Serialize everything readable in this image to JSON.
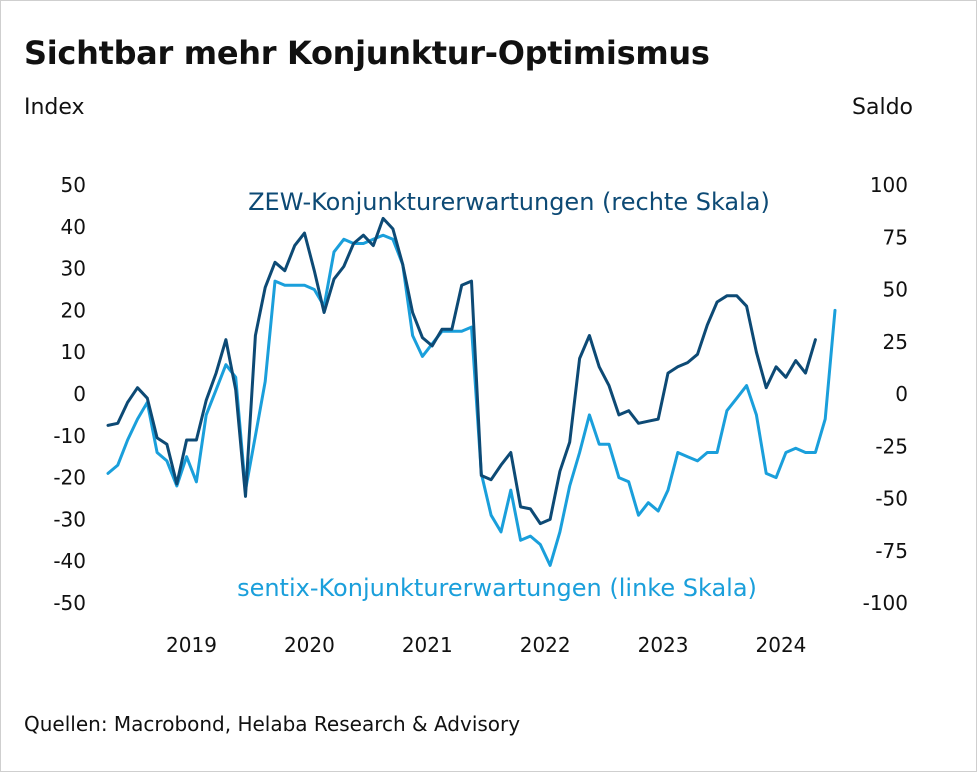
{
  "title": "Sichtbar mehr Konjunktur-Optimismus",
  "unit_left": "Index",
  "unit_right": "Saldo",
  "source": "Quellen: Macrobond, Helaba Research & Advisory",
  "colors": {
    "zew": "#0d4a75",
    "sentix": "#1a9fdb"
  },
  "chart_data": {
    "type": "line",
    "title": "Sichtbar mehr Konjunktur-Optimismus",
    "x_start": "2018-10",
    "frequency": "monthly",
    "x_tick_labels": [
      "2019",
      "2020",
      "2021",
      "2022",
      "2023",
      "2024"
    ],
    "y_left": {
      "label": "Index",
      "range": [
        -50,
        50
      ],
      "ticks": [
        "50",
        "40",
        "30",
        "20",
        "10",
        "0",
        "-10",
        "-20",
        "-30",
        "-40",
        "-50"
      ]
    },
    "y_right": {
      "label": "Saldo",
      "range": [
        -100,
        100
      ],
      "ticks": [
        "100",
        "75",
        "50",
        "25",
        "0",
        "-25",
        "-50",
        "-75",
        "-100"
      ]
    },
    "series": [
      {
        "name": "ZEW-Konjunkturerwartungen (rechte Skala)",
        "axis": "right",
        "values": [
          -15,
          -14,
          -4,
          3,
          -2,
          -21,
          -24,
          -43,
          -22,
          -22,
          -3,
          10,
          26,
          2,
          -49,
          28,
          51,
          63,
          59,
          71,
          77,
          59,
          39,
          55,
          61,
          72,
          76,
          71,
          84,
          79,
          62,
          39,
          27,
          23,
          31,
          31,
          52,
          54,
          -39,
          -41,
          -34,
          -28,
          -54,
          -55,
          -62,
          -60,
          -37,
          -23,
          17,
          28,
          13,
          4,
          -10,
          -8,
          -14,
          -13,
          -12,
          10,
          13,
          15,
          19,
          33,
          44,
          47,
          47,
          42,
          20,
          3,
          13,
          8,
          16,
          10,
          26
        ]
      },
      {
        "name": "sentix-Konjunkturerwartungen (linke Skala)",
        "axis": "left",
        "values": [
          -19,
          -17,
          -11,
          -6,
          -2,
          -14,
          -16,
          -22,
          -15,
          -21,
          -5,
          1,
          7,
          4,
          -23,
          -10,
          3,
          27,
          26,
          26,
          26,
          25,
          21,
          34,
          37,
          36,
          36,
          37,
          38,
          37,
          31,
          14,
          9,
          12,
          15,
          15,
          15,
          16,
          -19,
          -29,
          -33,
          -23,
          -35,
          -34,
          -36,
          -41,
          -33,
          -22,
          -14,
          -5,
          -12,
          -12,
          -20,
          -21,
          -29,
          -26,
          -28,
          -23,
          -14,
          -15,
          -16,
          -14,
          -14,
          -4,
          -1,
          2,
          -5,
          -19,
          -20,
          -14,
          -13,
          -14,
          -14,
          -6,
          20
        ]
      }
    ],
    "annotations": [
      {
        "text": "ZEW-Konjunkturerwartungen (rechte Skala)",
        "series": 0
      },
      {
        "text": "sentix-Konjunkturerwartungen (linke Skala)",
        "series": 1
      }
    ]
  }
}
